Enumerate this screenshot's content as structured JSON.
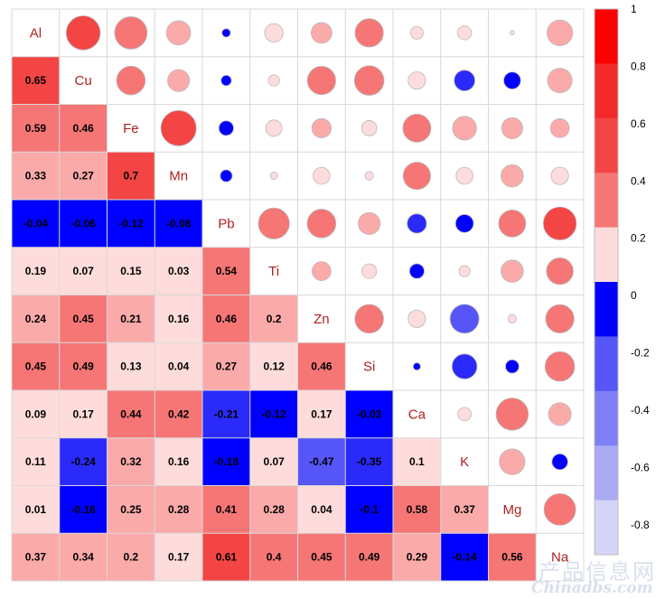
{
  "chart_data": {
    "type": "heatmap",
    "variables": [
      "Al",
      "Cu",
      "Fe",
      "Mn",
      "Pb",
      "Ti",
      "Zn",
      "Si",
      "Ca",
      "K",
      "Mg",
      "Na"
    ],
    "matrix": [
      [
        1,
        0.65,
        0.59,
        0.33,
        -0.04,
        0.19,
        0.24,
        0.45,
        0.09,
        0.11,
        0.01,
        0.37
      ],
      [
        0.65,
        1,
        0.46,
        0.27,
        -0.06,
        0.07,
        0.45,
        0.49,
        0.17,
        -0.24,
        -0.16,
        0.34
      ],
      [
        0.59,
        0.46,
        1,
        0.7,
        -0.12,
        0.15,
        0.21,
        0.13,
        0.44,
        0.32,
        0.25,
        0.2
      ],
      [
        0.33,
        0.27,
        0.7,
        1,
        -0.08,
        0.03,
        0.16,
        0.04,
        0.42,
        0.16,
        0.28,
        0.17
      ],
      [
        -0.04,
        -0.06,
        -0.12,
        -0.08,
        1,
        0.54,
        0.46,
        0.27,
        -0.21,
        -0.18,
        0.41,
        0.61
      ],
      [
        0.19,
        0.07,
        0.15,
        0.03,
        0.54,
        1,
        0.2,
        0.12,
        -0.12,
        0.07,
        0.28,
        0.4
      ],
      [
        0.24,
        0.45,
        0.21,
        0.16,
        0.46,
        0.2,
        1,
        0.46,
        0.17,
        -0.47,
        0.04,
        0.45
      ],
      [
        0.45,
        0.49,
        0.13,
        0.04,
        0.27,
        0.12,
        0.46,
        1,
        -0.03,
        -0.35,
        -0.1,
        0.49
      ],
      [
        0.09,
        0.17,
        0.44,
        0.42,
        -0.21,
        -0.12,
        0.17,
        -0.03,
        1,
        0.1,
        0.58,
        0.29
      ],
      [
        0.11,
        -0.24,
        0.32,
        0.16,
        -0.18,
        0.07,
        -0.47,
        -0.35,
        0.1,
        1,
        0.37,
        -0.14
      ],
      [
        0.01,
        -0.16,
        0.25,
        0.28,
        0.41,
        0.28,
        0.04,
        -0.1,
        0.58,
        0.37,
        1,
        0.56
      ],
      [
        0.37,
        0.34,
        0.2,
        0.17,
        0.61,
        0.4,
        0.45,
        0.49,
        0.29,
        -0.14,
        0.56,
        1
      ]
    ],
    "lower_triangle": "numbers",
    "upper_triangle": "circles",
    "color_scale": {
      "min": -1,
      "max": 1,
      "ticks": [
        "1",
        "0.8",
        "0.6",
        "0.4",
        "0.2",
        "0",
        "-0.2",
        "-0.4",
        "-0.6",
        "-0.8"
      ],
      "colors": {
        "neg": [
          "#0000ff",
          "#2a2afa",
          "#5555f8",
          "#7f7ff6",
          "#a9a9f4",
          "#d4d4f8"
        ],
        "pos": [
          "#ffdcdc",
          "#fbaaaa",
          "#f67676",
          "#f44545",
          "#f42a2a",
          "#ff0000"
        ]
      }
    },
    "legend_placement": "right",
    "grid": true
  },
  "watermark": {
    "chinese": "产品信息网",
    "english": "Chinadbs.com"
  }
}
